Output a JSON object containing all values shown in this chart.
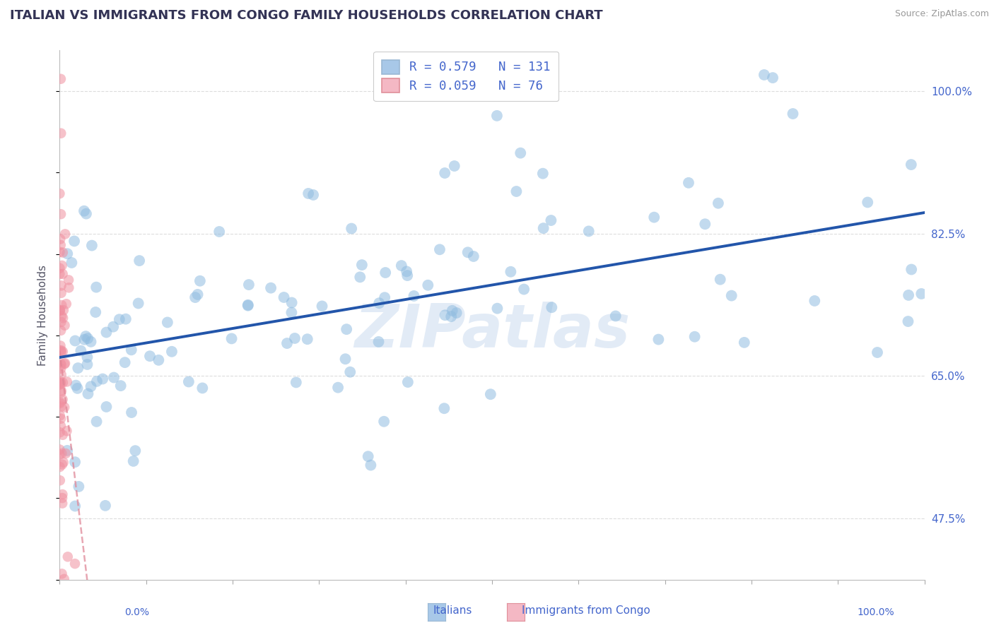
{
  "title": "ITALIAN VS IMMIGRANTS FROM CONGO FAMILY HOUSEHOLDS CORRELATION CHART",
  "source": "Source: ZipAtlas.com",
  "ylabel": "Family Households",
  "ytick_labels": [
    "47.5%",
    "65.0%",
    "82.5%",
    "100.0%"
  ],
  "ytick_values": [
    0.475,
    0.65,
    0.825,
    1.0
  ],
  "legend_entries": [
    {
      "label": "R = 0.579   N = 131",
      "color": "#a8c8e8"
    },
    {
      "label": "R = 0.059   N = 76",
      "color": "#f4b8c4"
    }
  ],
  "series1_name": "Italians",
  "series2_name": "Immigrants from Congo",
  "series1_color": "#90bce0",
  "series2_color": "#f090a0",
  "series1_line_color": "#2255aa",
  "series2_line_color": "#e08898",
  "watermark": "ZIPatlas",
  "background_color": "#ffffff",
  "grid_color": "#dddddd",
  "title_color": "#333355",
  "axis_label_color": "#4466cc",
  "R1": 0.579,
  "N1": 131,
  "R2": 0.059,
  "N2": 76,
  "seed": 42,
  "xlim": [
    0.0,
    1.0
  ],
  "ylim": [
    0.4,
    1.05
  ]
}
